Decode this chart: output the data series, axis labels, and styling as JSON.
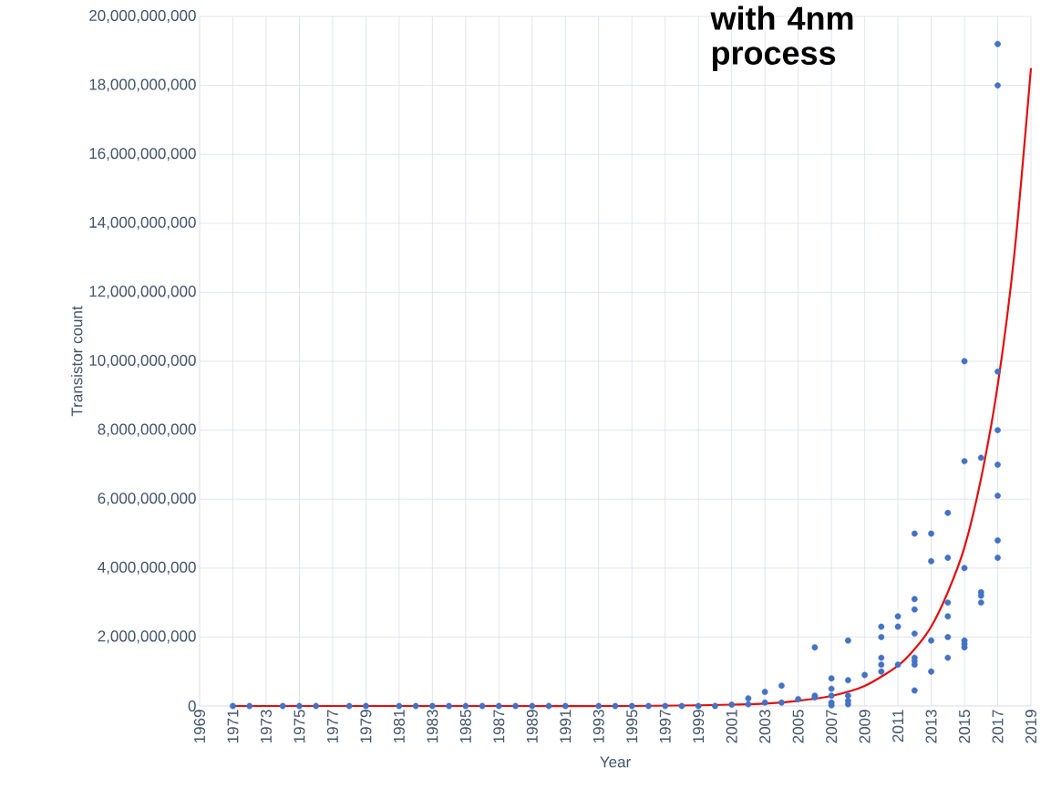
{
  "chart_data": {
    "type": "scatter",
    "xlabel": "Year",
    "ylabel": "Transistor count",
    "annotations": [
      "**with 4nm process**"
    ],
    "xlim": [
      1969,
      2019
    ],
    "xticks": [
      1969,
      1971,
      1973,
      1975,
      1977,
      1979,
      1981,
      1983,
      1985,
      1987,
      1989,
      1991,
      1993,
      1995,
      1997,
      1999,
      2001,
      2003,
      2005,
      2007,
      2009,
      2011,
      2013,
      2015,
      2017,
      2019
    ],
    "ylim": [
      0,
      20000000000.0
    ],
    "yticks": [
      0,
      {
        "value": 2000000000.0,
        "label": "2,000,000,000"
      },
      {
        "value": 4000000000.0,
        "label": "4,000,000,000"
      },
      {
        "value": 6000000000.0,
        "label": "6,000,000,000"
      },
      {
        "value": 8000000000.0,
        "label": "8,000,000,000"
      },
      {
        "value": 10000000000.0,
        "label": "10,000,000,000"
      },
      {
        "value": 12000000000.0,
        "label": "12,000,000,000"
      },
      {
        "value": 14000000000.0,
        "label": "14,000,000,000"
      },
      {
        "value": 16000000000.0,
        "label": "16,000,000,000"
      },
      {
        "value": 18000000000.0,
        "label": "18,000,000,000"
      },
      {
        "value": 20000000000.0,
        "label": "20,000,000,000"
      }
    ],
    "grid": true,
    "series": [
      {
        "color": "#4472c4",
        "marker": "circle",
        "x": [
          1971,
          1972,
          1974,
          1975,
          1976,
          1978,
          1979,
          1981,
          1982,
          1983,
          1984,
          1985,
          1986,
          1987,
          1988,
          1989,
          1990,
          1991,
          1993,
          1994,
          1995,
          1996,
          1997,
          1998,
          1999,
          2000,
          2001,
          2002,
          2002,
          2003,
          2003,
          2004,
          2004,
          2005,
          2006,
          2006,
          2006,
          2007,
          2007,
          2007,
          2007,
          2007,
          2008,
          2008,
          2008,
          2008,
          2008,
          2009,
          2010,
          2010,
          2010,
          2010,
          2010,
          2011,
          2011,
          2011,
          2012,
          2012,
          2012,
          2012,
          2012,
          2012,
          2012,
          2012,
          2013,
          2013,
          2013,
          2013,
          2014,
          2014,
          2014,
          2014,
          2014,
          2014,
          2015,
          2015,
          2015,
          2015,
          2015,
          2015,
          2016,
          2016,
          2016,
          2016,
          2017,
          2017,
          2017,
          2017,
          2017,
          2017,
          2017,
          2017
        ],
        "values": [
          0,
          0,
          0,
          0,
          0,
          0,
          0,
          0,
          0,
          0,
          0,
          0,
          0,
          0,
          0,
          0,
          0,
          0,
          0,
          0,
          0,
          0,
          0,
          0,
          0,
          0,
          40000000.0,
          220000000.0,
          50000000.0,
          410000000.0,
          100000000.0,
          590000000.0,
          100000000.0,
          200000000.0,
          1700000000.0,
          300000000.0,
          250000000.0,
          800000000.0,
          500000000.0,
          300000000.0,
          100000000.0,
          20000000.0,
          1900000000.0,
          750000000.0,
          300000000.0,
          150000000.0,
          50000000.0,
          900000000.0,
          2300000000.0,
          2000000000.0,
          1400000000.0,
          1200000000.0,
          1000000000.0,
          2600000000.0,
          2300000000.0,
          1200000000.0,
          5000000000.0,
          3100000000.0,
          2800000000.0,
          2100000000.0,
          1400000000.0,
          1300000000.0,
          1200000000.0,
          450000000.0,
          5000000000.0,
          4200000000.0,
          1900000000.0,
          1000000000.0,
          5600000000.0,
          4300000000.0,
          3000000000.0,
          2600000000.0,
          2000000000.0,
          1400000000.0,
          10000000000.0,
          7100000000.0,
          4000000000.0,
          1900000000.0,
          1800000000.0,
          1700000000.0,
          7200000000.0,
          3300000000.0,
          3200000000.0,
          3000000000.0,
          19200000000.0,
          18000000000.0,
          9700000000.0,
          8000000000.0,
          7000000000.0,
          6100000000.0,
          4800000000.0,
          4300000000.0
        ]
      },
      {
        "type": "line",
        "color": "#e01010",
        "marker": "none",
        "x": [
          1971,
          1979,
          1987,
          1995,
          1999,
          2001,
          2003,
          2005,
          2007,
          2009,
          2011,
          2012,
          2013,
          2014,
          2015,
          2016,
          2017,
          2018,
          2019
        ],
        "values": [
          0,
          0,
          0,
          0,
          20000000.0,
          40000000.0,
          70000000.0,
          150000000.0,
          290000000.0,
          580000000.0,
          1170000000.0,
          1650000000.0,
          2300000000.0,
          3300000000.0,
          4600000000.0,
          6600000000.0,
          9300000000.0,
          13100000000.0,
          18500000000.0
        ]
      }
    ]
  }
}
